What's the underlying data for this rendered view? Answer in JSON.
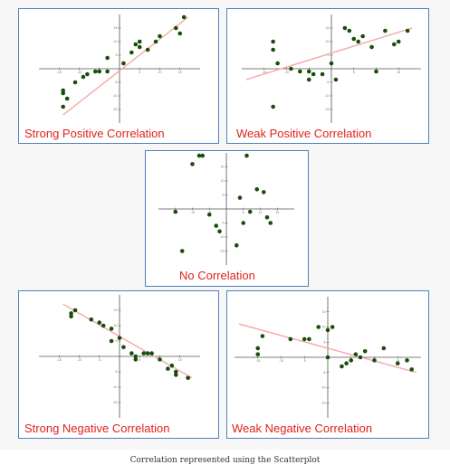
{
  "colors": {
    "border": "#4f81bd",
    "title": "#e0231a",
    "point": "#1a4d0a",
    "trend": "#f4a6a6",
    "axis": "#555555"
  },
  "caption": "Correlation represented using the Scatterplot",
  "chart_data": [
    {
      "type": "scatter",
      "title": "Strong Positive Correlation",
      "xlim": [
        -20,
        20
      ],
      "ylim": [
        -20,
        20
      ],
      "x_ticks": [
        -15,
        -10,
        -5,
        5,
        10,
        15
      ],
      "y_ticks": [
        -15,
        -10,
        -5,
        5,
        10,
        15
      ],
      "points": [
        [
          -14,
          -8
        ],
        [
          -14,
          -9
        ],
        [
          -13,
          -11
        ],
        [
          -14,
          -14
        ],
        [
          -11,
          -5
        ],
        [
          -9,
          -3
        ],
        [
          -8,
          -2
        ],
        [
          -6,
          -1
        ],
        [
          -5,
          -1
        ],
        [
          -3,
          -1
        ],
        [
          -3,
          4
        ],
        [
          1,
          2
        ],
        [
          3,
          6
        ],
        [
          4,
          9
        ],
        [
          5,
          8
        ],
        [
          5,
          10
        ],
        [
          7,
          7
        ],
        [
          9,
          10
        ],
        [
          10,
          12
        ],
        [
          14,
          15
        ],
        [
          15,
          13
        ],
        [
          16,
          19
        ]
      ],
      "trend": [
        [
          -14,
          -17
        ],
        [
          17,
          19
        ]
      ]
    },
    {
      "type": "scatter",
      "title": "Weak Positive Correlation",
      "xlim": [
        -20,
        20
      ],
      "ylim": [
        -20,
        20
      ],
      "x_ticks": [
        -15,
        -10,
        -5,
        5,
        10,
        15
      ],
      "y_ticks": [
        -15,
        -10,
        -5,
        5,
        10,
        15
      ],
      "points": [
        [
          -13,
          10
        ],
        [
          -13,
          7
        ],
        [
          -12,
          2
        ],
        [
          -9,
          0
        ],
        [
          -7,
          -1
        ],
        [
          -5,
          -1
        ],
        [
          -5,
          -4
        ],
        [
          -4,
          -2
        ],
        [
          -2,
          -2
        ],
        [
          0,
          2
        ],
        [
          1,
          -4
        ],
        [
          3,
          15
        ],
        [
          4,
          14
        ],
        [
          5,
          11
        ],
        [
          6,
          10
        ],
        [
          7,
          12
        ],
        [
          9,
          8
        ],
        [
          10,
          -1
        ],
        [
          12,
          14
        ],
        [
          14,
          9
        ],
        [
          15,
          10
        ],
        [
          17,
          14
        ],
        [
          -13,
          -14
        ]
      ],
      "trend": [
        [
          -19,
          -4
        ],
        [
          18,
          15
        ]
      ]
    },
    {
      "type": "scatter",
      "title": "No Correlation",
      "xlim": [
        -20,
        20
      ],
      "ylim": [
        -20,
        20
      ],
      "x_ticks": [
        -15,
        -10,
        -5,
        5,
        10,
        15
      ],
      "y_ticks": [
        -15,
        -10,
        -5,
        5,
        10,
        15
      ],
      "points": [
        [
          -13,
          -15
        ],
        [
          -10,
          16
        ],
        [
          -8,
          19
        ],
        [
          -7,
          19
        ],
        [
          -5,
          -2
        ],
        [
          -3,
          -6
        ],
        [
          -2,
          -8
        ],
        [
          3,
          -13
        ],
        [
          4,
          4
        ],
        [
          5,
          -5
        ],
        [
          6,
          19
        ],
        [
          7,
          -1
        ],
        [
          9,
          7
        ],
        [
          11,
          6
        ],
        [
          12,
          -3
        ],
        [
          13,
          -5
        ],
        [
          -15,
          -1
        ]
      ],
      "trend": []
    },
    {
      "type": "scatter",
      "title": "Strong Negative Correlation",
      "xlim": [
        -20,
        20
      ],
      "ylim": [
        -20,
        20
      ],
      "x_ticks": [
        -15,
        -10,
        -5,
        5,
        10,
        15
      ],
      "y_ticks": [
        -15,
        -10,
        -5,
        5,
        10,
        15
      ],
      "points": [
        [
          -12,
          14
        ],
        [
          -12,
          13
        ],
        [
          -11,
          15
        ],
        [
          -7,
          12
        ],
        [
          -5,
          11
        ],
        [
          -4,
          10
        ],
        [
          -2,
          9
        ],
        [
          -2,
          5
        ],
        [
          0,
          6
        ],
        [
          1,
          3
        ],
        [
          3,
          1
        ],
        [
          4,
          0
        ],
        [
          4,
          -1
        ],
        [
          6,
          1
        ],
        [
          7,
          1
        ],
        [
          8,
          1
        ],
        [
          10,
          -1
        ],
        [
          12,
          -4
        ],
        [
          13,
          -3
        ],
        [
          14,
          -5
        ],
        [
          17,
          -7
        ],
        [
          14,
          -6
        ]
      ],
      "trend": [
        [
          -14,
          17
        ],
        [
          18,
          -7
        ]
      ]
    },
    {
      "type": "scatter",
      "title": "Weak Negative Correlation",
      "xlim": [
        -20,
        20
      ],
      "ylim": [
        -20,
        20
      ],
      "x_ticks": [
        -15,
        -10,
        -5,
        5,
        10,
        15
      ],
      "y_ticks": [
        -15,
        -10,
        -5,
        5,
        10,
        15
      ],
      "points": [
        [
          -15,
          3
        ],
        [
          -15,
          1
        ],
        [
          -14,
          7
        ],
        [
          -8,
          6
        ],
        [
          -5,
          6
        ],
        [
          -4,
          6
        ],
        [
          -2,
          10
        ],
        [
          0,
          9
        ],
        [
          1,
          10
        ],
        [
          0,
          0
        ],
        [
          3,
          -3
        ],
        [
          4,
          -2
        ],
        [
          5,
          -1
        ],
        [
          6,
          1
        ],
        [
          7,
          0
        ],
        [
          8,
          2
        ],
        [
          10,
          -1
        ],
        [
          12,
          3
        ],
        [
          15,
          -2
        ],
        [
          17,
          -1
        ],
        [
          18,
          -4
        ]
      ],
      "trend": [
        [
          -19,
          11
        ],
        [
          19,
          -5
        ]
      ]
    }
  ]
}
